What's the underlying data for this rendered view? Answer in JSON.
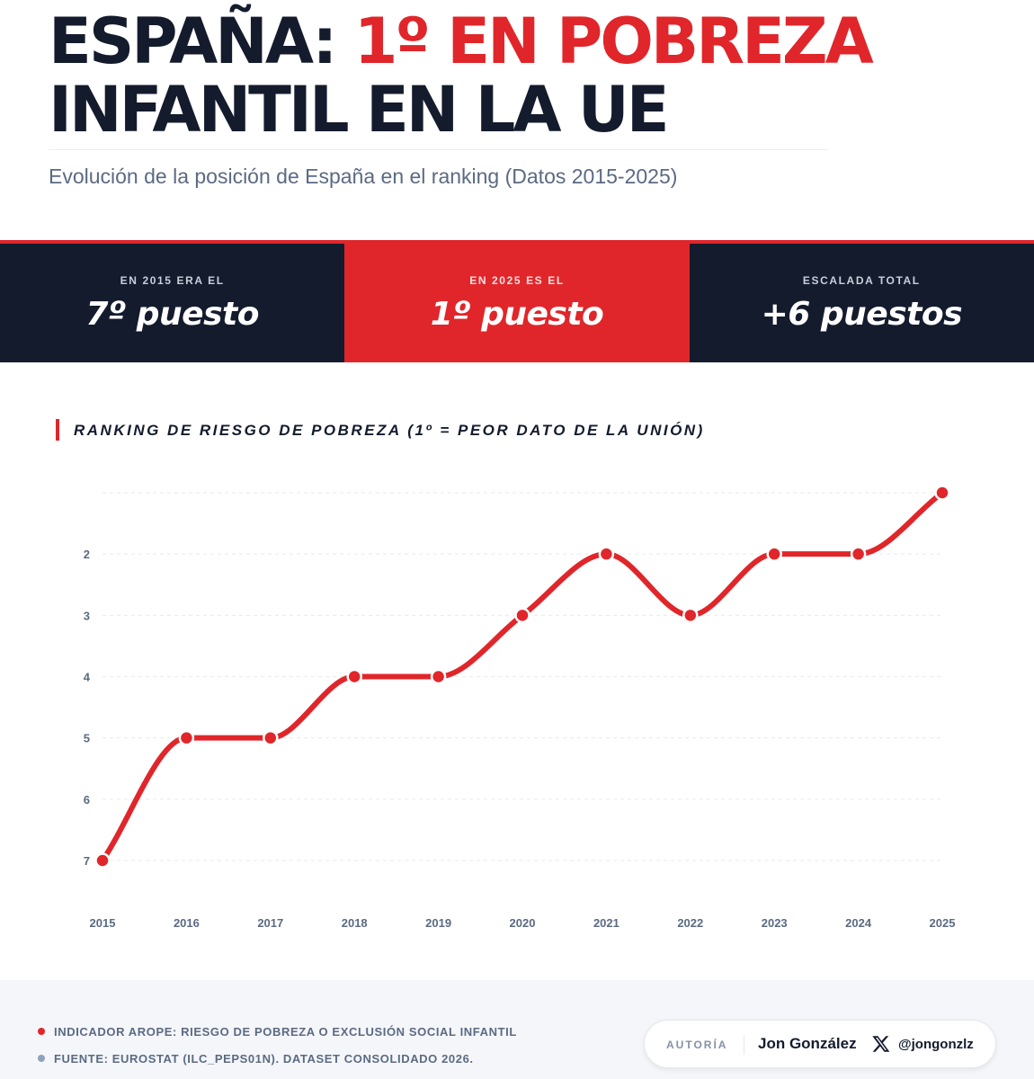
{
  "header": {
    "title_part1": "ESPAÑA: ",
    "title_accent": "1º EN POBREZA",
    "title_line2": "INFANTIL EN LA UE",
    "subtitle": "Evolución de la posición de España en el ranking (Datos 2015-2025)"
  },
  "stats": [
    {
      "label": "EN 2015 ERA EL",
      "value": "7º puesto"
    },
    {
      "label": "EN 2025 ES EL",
      "value": "1º puesto"
    },
    {
      "label": "ESCALADA TOTAL",
      "value": "+6 puestos"
    }
  ],
  "chart_section": {
    "title": "RANKING DE RIESGO DE POBREZA (1º = PEOR DATO DE LA UNIÓN)"
  },
  "chart_data": {
    "type": "line",
    "x": [
      "2015",
      "2016",
      "2017",
      "2018",
      "2019",
      "2020",
      "2021",
      "2022",
      "2023",
      "2024",
      "2025"
    ],
    "series": [
      {
        "values": [
          7,
          5,
          5,
          4,
          4,
          3,
          2,
          3,
          2,
          2,
          1
        ]
      }
    ],
    "y_ticks": [
      "2",
      "3",
      "4",
      "5",
      "6",
      "7"
    ],
    "ylim": [
      1,
      7
    ],
    "y_inverted": true,
    "grid": true,
    "line_color": "#e0262a",
    "smooth": true
  },
  "footer": {
    "note1": "INDICADOR AROPE: RIESGO DE POBREZA O EXCLUSIÓN SOCIAL INFANTIL",
    "note2": "FUENTE: EUROSTAT (ILC_PEPS01N). DATASET CONSOLIDADO 2026.",
    "note1_dot_color": "#e0262a",
    "note2_dot_color": "#8fa2bd",
    "author_label": "AUTORÍA",
    "author_name": "Jon González",
    "author_icon": "x-logo-icon",
    "author_handle": "@jongonzlz"
  },
  "colors": {
    "accent": "#e0262a",
    "navy": "#141b2d",
    "muted": "#5b6a83"
  }
}
